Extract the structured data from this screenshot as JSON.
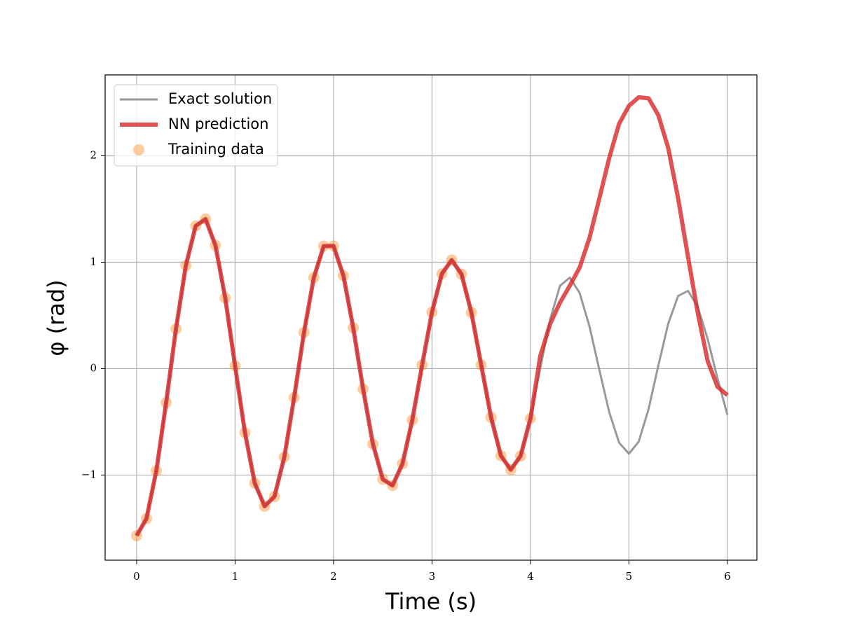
{
  "chart_data": {
    "type": "line",
    "xlabel": "Time (s)",
    "ylabel": "φ (rad)",
    "x": [
      0,
      0.1,
      0.2,
      0.3,
      0.4,
      0.5,
      0.6,
      0.7,
      0.8,
      0.9,
      1.0,
      1.1,
      1.2,
      1.3,
      1.4,
      1.5,
      1.6,
      1.7,
      1.8,
      1.9,
      2.0,
      2.1,
      2.2,
      2.3,
      2.4,
      2.5,
      2.6,
      2.7,
      2.8,
      2.9,
      3.0,
      3.1,
      3.2,
      3.3,
      3.4,
      3.5,
      3.6,
      3.7,
      3.8,
      3.9,
      4.0,
      4.1,
      4.2,
      4.3,
      4.4,
      4.5,
      4.6,
      4.7,
      4.8,
      4.9,
      5.0,
      5.1,
      5.2,
      5.3,
      5.4,
      5.5,
      5.6,
      5.7,
      5.8,
      5.9,
      6.0
    ],
    "series": [
      {
        "name": "Exact solution",
        "color": "#999999",
        "mark": "line",
        "values": [
          -1.57,
          -1.409,
          -0.959,
          -0.319,
          0.374,
          0.969,
          1.341,
          1.406,
          1.16,
          0.664,
          0.027,
          -0.601,
          -1.076,
          -1.293,
          -1.202,
          -0.831,
          -0.272,
          0.341,
          0.856,
          1.151,
          1.153,
          0.874,
          0.384,
          -0.192,
          -0.709,
          -1.04,
          -1.098,
          -0.894,
          -0.483,
          0.035,
          0.531,
          0.891,
          1.02,
          0.888,
          0.528,
          0.035,
          -0.458,
          -0.818,
          -0.95,
          -0.821,
          -0.469,
          0.004,
          0.463,
          0.778,
          0.856,
          0.711,
          0.395,
          -0.012,
          -0.409,
          -0.695,
          -0.8,
          -0.686,
          -0.378,
          0.033,
          0.426,
          0.683,
          0.731,
          0.579,
          0.278,
          -0.092,
          -0.433
        ]
      },
      {
        "name": "NN prediction",
        "color": "#d62728",
        "mark": "line",
        "values": [
          -1.57,
          -1.409,
          -0.959,
          -0.319,
          0.374,
          0.969,
          1.341,
          1.406,
          1.16,
          0.664,
          0.027,
          -0.601,
          -1.076,
          -1.293,
          -1.202,
          -0.831,
          -0.272,
          0.341,
          0.856,
          1.151,
          1.153,
          0.874,
          0.384,
          -0.192,
          -0.709,
          -1.04,
          -1.098,
          -0.894,
          -0.483,
          0.035,
          0.531,
          0.891,
          1.02,
          0.888,
          0.528,
          0.035,
          -0.458,
          -0.818,
          -0.95,
          -0.821,
          -0.469,
          0.12,
          0.42,
          0.62,
          0.78,
          0.95,
          1.23,
          1.6,
          1.98,
          2.3,
          2.47,
          2.55,
          2.54,
          2.38,
          2.07,
          1.6,
          1.05,
          0.52,
          0.07,
          -0.17,
          -0.25
        ]
      },
      {
        "name": "Training data",
        "color": "#ff7f0e",
        "mark": "scatter",
        "values": [
          -1.57,
          -1.409,
          -0.959,
          -0.319,
          0.374,
          0.969,
          1.341,
          1.406,
          1.16,
          0.664,
          0.027,
          -0.601,
          -1.076,
          -1.293,
          -1.202,
          -0.831,
          -0.272,
          0.341,
          0.856,
          1.151,
          1.153,
          0.874,
          0.384,
          -0.192,
          -0.709,
          -1.04,
          -1.098,
          -0.894,
          -0.483,
          0.035,
          0.531,
          0.891,
          1.02,
          0.888,
          0.528,
          0.035,
          -0.458,
          -0.818,
          -0.95,
          -0.821,
          -0.469,
          null,
          null,
          null,
          null,
          null,
          null,
          null,
          null,
          null,
          null,
          null,
          null,
          null,
          null,
          null,
          null,
          null,
          null,
          null,
          null
        ]
      }
    ],
    "xlim": [
      -0.32,
      6.3
    ],
    "xticks": [
      0,
      1,
      2,
      3,
      4,
      5,
      6
    ],
    "ylim": [
      -1.8,
      2.76
    ],
    "yticks": [
      {
        "value": -1,
        "label": "−1"
      },
      0,
      1,
      2
    ],
    "grid": true,
    "legend": "upper left"
  }
}
